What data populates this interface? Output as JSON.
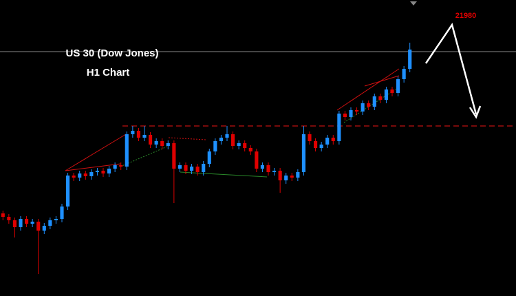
{
  "chart_data": {
    "type": "candlestick",
    "title": "US 30 (Dow Jones)",
    "subtitle": "H1 Chart",
    "annotation": "21980",
    "up_color": "#1e90ff",
    "down_color": "#e00000",
    "ylim": [
      21600,
      22030
    ],
    "price_line": 21955,
    "resistance_line": 21847,
    "open": [
      21720,
      21715,
      21710,
      21700,
      21712,
      21705,
      21708,
      21695,
      21702,
      21710,
      21712,
      21730,
      21775,
      21772,
      21778,
      21774,
      21780,
      21782,
      21778,
      21785,
      21790,
      21788,
      21835,
      21840,
      21830,
      21834,
      21820,
      21825,
      21818,
      21822,
      21785,
      21790,
      21782,
      21788,
      21780,
      21792,
      21810,
      21825,
      21830,
      21835,
      21818,
      21822,
      21815,
      21810,
      21785,
      21790,
      21780,
      21782,
      21768,
      21775,
      21772,
      21780,
      21835,
      21825,
      21815,
      21820,
      21830,
      21825,
      21865,
      21860,
      21870,
      21868,
      21880,
      21875,
      21890,
      21885,
      21900,
      21895,
      21915,
      21930
    ],
    "high": [
      21724,
      21719,
      21714,
      21716,
      21716,
      21712,
      21712,
      21706,
      21714,
      21716,
      21734,
      21779,
      21779,
      21782,
      21782,
      21784,
      21786,
      21786,
      21789,
      21794,
      21794,
      21839,
      21847,
      21844,
      21847,
      21838,
      21829,
      21829,
      21826,
      21826,
      21794,
      21794,
      21792,
      21792,
      21796,
      21814,
      21829,
      21834,
      21847,
      21839,
      21826,
      21826,
      21819,
      21814,
      21794,
      21794,
      21786,
      21786,
      21779,
      21779,
      21784,
      21847,
      21839,
      21829,
      21824,
      21834,
      21834,
      21869,
      21869,
      21874,
      21874,
      21884,
      21884,
      21894,
      21894,
      21904,
      21904,
      21919,
      21934,
      21968
    ],
    "low": [
      21710,
      21705,
      21685,
      21695,
      21700,
      21700,
      21632,
      21690,
      21697,
      21705,
      21707,
      21725,
      21767,
      21767,
      21769,
      21769,
      21775,
      21773,
      21773,
      21780,
      21783,
      21783,
      21830,
      21825,
      21825,
      21815,
      21815,
      21813,
      21813,
      21735,
      21780,
      21777,
      21777,
      21775,
      21775,
      21787,
      21805,
      21820,
      21825,
      21813,
      21813,
      21810,
      21805,
      21780,
      21780,
      21775,
      21775,
      21750,
      21763,
      21767,
      21767,
      21775,
      21820,
      21810,
      21810,
      21815,
      21820,
      21820,
      21855,
      21855,
      21863,
      21863,
      21870,
      21870,
      21880,
      21880,
      21890,
      21890,
      21910,
      21925
    ],
    "close": [
      21715,
      21710,
      21700,
      21712,
      21705,
      21708,
      21695,
      21702,
      21710,
      21712,
      21730,
      21775,
      21772,
      21778,
      21774,
      21780,
      21782,
      21778,
      21785,
      21790,
      21788,
      21835,
      21840,
      21830,
      21834,
      21820,
      21825,
      21818,
      21822,
      21785,
      21790,
      21782,
      21788,
      21780,
      21792,
      21810,
      21825,
      21830,
      21835,
      21818,
      21822,
      21815,
      21810,
      21785,
      21790,
      21780,
      21782,
      21768,
      21775,
      21772,
      21780,
      21835,
      21825,
      21815,
      21820,
      21830,
      21825,
      21865,
      21860,
      21870,
      21868,
      21880,
      21875,
      21890,
      21885,
      21900,
      21895,
      21915,
      21930,
      21958
    ]
  }
}
